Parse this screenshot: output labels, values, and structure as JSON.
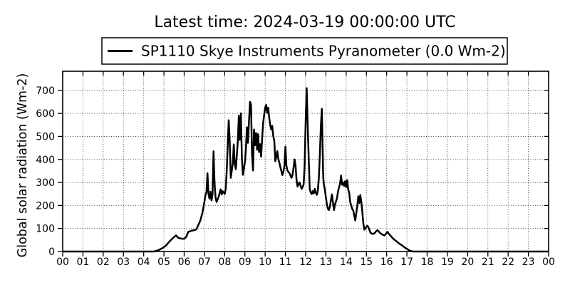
{
  "chart_data": {
    "type": "line",
    "title": "Latest time: 2024-03-19 00:00:00 UTC",
    "xlabel": "",
    "ylabel": "Global solar radiation (Wm-2)",
    "xlim": [
      0,
      24
    ],
    "ylim": [
      0,
      783
    ],
    "yticks": [
      0,
      100,
      200,
      300,
      400,
      500,
      600,
      700
    ],
    "xticks": [
      0,
      1,
      2,
      3,
      4,
      5,
      6,
      7,
      8,
      9,
      10,
      11,
      12,
      13,
      14,
      15,
      16,
      17,
      18,
      19,
      20,
      21,
      22,
      23,
      24
    ],
    "xtick_labels": [
      "00",
      "01",
      "02",
      "03",
      "04",
      "05",
      "06",
      "07",
      "08",
      "09",
      "10",
      "11",
      "12",
      "13",
      "14",
      "15",
      "16",
      "17",
      "18",
      "19",
      "20",
      "21",
      "22",
      "23",
      "00"
    ],
    "grid": "dotted",
    "legend_position": "upper center above axes",
    "line_color": "#000000",
    "latest_value_wm2": 0.0,
    "series": [
      {
        "name": "SP1110 Skye Instruments Pyranometer (0.0 Wm-2)",
        "color": "#000000",
        "points": [
          [
            0,
            0
          ],
          [
            4.5,
            0
          ],
          [
            4.7,
            5
          ],
          [
            4.9,
            13
          ],
          [
            5.1,
            26
          ],
          [
            5.3,
            46
          ],
          [
            5.5,
            63
          ],
          [
            5.6,
            70
          ],
          [
            5.7,
            60
          ],
          [
            5.85,
            56
          ],
          [
            6.0,
            55
          ],
          [
            6.1,
            63
          ],
          [
            6.2,
            85
          ],
          [
            6.35,
            90
          ],
          [
            6.5,
            93
          ],
          [
            6.6,
            96
          ],
          [
            6.7,
            115
          ],
          [
            6.8,
            135
          ],
          [
            6.9,
            168
          ],
          [
            7.0,
            215
          ],
          [
            7.05,
            245
          ],
          [
            7.1,
            258
          ],
          [
            7.15,
            340
          ],
          [
            7.2,
            250
          ],
          [
            7.25,
            230
          ],
          [
            7.3,
            260
          ],
          [
            7.35,
            222
          ],
          [
            7.4,
            248
          ],
          [
            7.45,
            435
          ],
          [
            7.5,
            300
          ],
          [
            7.55,
            235
          ],
          [
            7.6,
            215
          ],
          [
            7.7,
            237
          ],
          [
            7.8,
            270
          ],
          [
            7.85,
            248
          ],
          [
            7.9,
            262
          ],
          [
            8.0,
            250
          ],
          [
            8.05,
            272
          ],
          [
            8.1,
            350
          ],
          [
            8.2,
            570
          ],
          [
            8.25,
            480
          ],
          [
            8.3,
            320
          ],
          [
            8.4,
            382
          ],
          [
            8.45,
            465
          ],
          [
            8.5,
            380
          ],
          [
            8.55,
            357
          ],
          [
            8.6,
            420
          ],
          [
            8.65,
            480
          ],
          [
            8.7,
            590
          ],
          [
            8.75,
            485
          ],
          [
            8.8,
            600
          ],
          [
            8.85,
            405
          ],
          [
            8.9,
            333
          ],
          [
            9.0,
            390
          ],
          [
            9.05,
            450
          ],
          [
            9.1,
            540
          ],
          [
            9.15,
            472
          ],
          [
            9.2,
            562
          ],
          [
            9.25,
            650
          ],
          [
            9.3,
            638
          ],
          [
            9.35,
            425
          ],
          [
            9.4,
            352
          ],
          [
            9.45,
            530
          ],
          [
            9.5,
            462
          ],
          [
            9.55,
            515
          ],
          [
            9.6,
            442
          ],
          [
            9.65,
            510
          ],
          [
            9.7,
            432
          ],
          [
            9.75,
            466
          ],
          [
            9.8,
            412
          ],
          [
            9.85,
            490
          ],
          [
            9.9,
            558
          ],
          [
            9.95,
            592
          ],
          [
            10.0,
            625
          ],
          [
            10.05,
            637
          ],
          [
            10.1,
            602
          ],
          [
            10.15,
            625
          ],
          [
            10.2,
            582
          ],
          [
            10.25,
            548
          ],
          [
            10.3,
            530
          ],
          [
            10.35,
            546
          ],
          [
            10.4,
            502
          ],
          [
            10.45,
            480
          ],
          [
            10.5,
            392
          ],
          [
            10.55,
            412
          ],
          [
            10.6,
            436
          ],
          [
            10.65,
            402
          ],
          [
            10.7,
            386
          ],
          [
            10.75,
            366
          ],
          [
            10.8,
            350
          ],
          [
            10.85,
            332
          ],
          [
            10.9,
            346
          ],
          [
            10.95,
            372
          ],
          [
            11.0,
            456
          ],
          [
            11.05,
            372
          ],
          [
            11.1,
            352
          ],
          [
            11.15,
            346
          ],
          [
            11.2,
            340
          ],
          [
            11.3,
            320
          ],
          [
            11.35,
            332
          ],
          [
            11.4,
            362
          ],
          [
            11.45,
            400
          ],
          [
            11.5,
            372
          ],
          [
            11.55,
            312
          ],
          [
            11.6,
            282
          ],
          [
            11.65,
            292
          ],
          [
            11.7,
            300
          ],
          [
            11.75,
            286
          ],
          [
            11.8,
            272
          ],
          [
            11.85,
            280
          ],
          [
            11.9,
            292
          ],
          [
            11.95,
            380
          ],
          [
            12.0,
            565
          ],
          [
            12.05,
            710
          ],
          [
            12.1,
            555
          ],
          [
            12.15,
            402
          ],
          [
            12.2,
            272
          ],
          [
            12.25,
            256
          ],
          [
            12.3,
            250
          ],
          [
            12.35,
            262
          ],
          [
            12.4,
            252
          ],
          [
            12.45,
            272
          ],
          [
            12.5,
            257
          ],
          [
            12.55,
            246
          ],
          [
            12.6,
            262
          ],
          [
            12.65,
            320
          ],
          [
            12.7,
            420
          ],
          [
            12.75,
            542
          ],
          [
            12.8,
            620
          ],
          [
            12.83,
            480
          ],
          [
            12.87,
            320
          ],
          [
            12.9,
            290
          ],
          [
            12.95,
            268
          ],
          [
            13.0,
            235
          ],
          [
            13.05,
            205
          ],
          [
            13.1,
            185
          ],
          [
            13.15,
            180
          ],
          [
            13.2,
            196
          ],
          [
            13.25,
            225
          ],
          [
            13.3,
            248
          ],
          [
            13.35,
            210
          ],
          [
            13.4,
            180
          ],
          [
            13.45,
            205
          ],
          [
            13.5,
            218
          ],
          [
            13.55,
            232
          ],
          [
            13.6,
            262
          ],
          [
            13.7,
            295
          ],
          [
            13.75,
            330
          ],
          [
            13.8,
            290
          ],
          [
            13.85,
            300
          ],
          [
            13.9,
            285
          ],
          [
            13.95,
            305
          ],
          [
            14.0,
            280
          ],
          [
            14.05,
            310
          ],
          [
            14.1,
            270
          ],
          [
            14.15,
            255
          ],
          [
            14.2,
            215
          ],
          [
            14.25,
            200
          ],
          [
            14.3,
            185
          ],
          [
            14.35,
            178
          ],
          [
            14.45,
            135
          ],
          [
            14.55,
            200
          ],
          [
            14.6,
            240
          ],
          [
            14.65,
            210
          ],
          [
            14.7,
            245
          ],
          [
            14.75,
            215
          ],
          [
            14.8,
            170
          ],
          [
            14.85,
            120
          ],
          [
            14.9,
            95
          ],
          [
            14.95,
            100
          ],
          [
            15.0,
            108
          ],
          [
            15.05,
            112
          ],
          [
            15.1,
            105
          ],
          [
            15.2,
            82
          ],
          [
            15.3,
            76
          ],
          [
            15.4,
            79
          ],
          [
            15.5,
            90
          ],
          [
            15.55,
            93
          ],
          [
            15.6,
            88
          ],
          [
            15.7,
            79
          ],
          [
            15.8,
            73
          ],
          [
            15.9,
            70
          ],
          [
            16.0,
            81
          ],
          [
            16.05,
            85
          ],
          [
            16.1,
            78
          ],
          [
            16.2,
            68
          ],
          [
            16.3,
            58
          ],
          [
            16.4,
            50
          ],
          [
            16.5,
            43
          ],
          [
            16.6,
            36
          ],
          [
            16.7,
            30
          ],
          [
            16.8,
            24
          ],
          [
            16.9,
            17
          ],
          [
            17.0,
            12
          ],
          [
            17.1,
            6
          ],
          [
            17.2,
            2
          ],
          [
            17.3,
            0
          ],
          [
            24.0,
            0
          ]
        ]
      }
    ]
  }
}
